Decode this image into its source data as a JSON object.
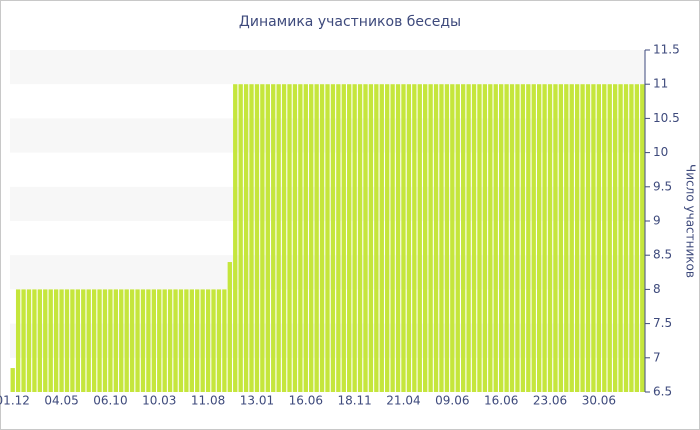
{
  "chart_data": {
    "type": "bar",
    "title": "Динамика участников беседы",
    "y_label": "Число участников",
    "categories": [
      "01.12",
      null,
      null,
      null,
      null,
      null,
      null,
      null,
      null,
      "04.05",
      null,
      null,
      null,
      null,
      null,
      null,
      null,
      null,
      "06.10",
      null,
      null,
      null,
      null,
      null,
      null,
      null,
      null,
      "10.03",
      null,
      null,
      null,
      null,
      null,
      null,
      null,
      null,
      "11.08",
      null,
      null,
      null,
      null,
      null,
      null,
      null,
      null,
      "13.01",
      null,
      null,
      null,
      null,
      null,
      null,
      null,
      null,
      "16.06",
      null,
      null,
      null,
      null,
      null,
      null,
      null,
      null,
      "18.11",
      null,
      null,
      null,
      null,
      null,
      null,
      null,
      null,
      "21.04",
      null,
      null,
      null,
      null,
      null,
      null,
      null,
      null,
      "09.06",
      null,
      null,
      null,
      null,
      null,
      null,
      null,
      null,
      "16.06",
      null,
      null,
      null,
      null,
      null,
      null,
      null,
      null,
      "23.06",
      null,
      null,
      null,
      null,
      null,
      null,
      null,
      null,
      "30.06",
      null,
      null,
      null,
      null,
      null,
      null,
      null,
      null
    ],
    "values": [
      6.85,
      8,
      8,
      8,
      8,
      8,
      8,
      8,
      8,
      8,
      8,
      8,
      8,
      8,
      8,
      8,
      8,
      8,
      8,
      8,
      8,
      8,
      8,
      8,
      8,
      8,
      8,
      8,
      8,
      8,
      8,
      8,
      8,
      8,
      8,
      8,
      8,
      8,
      8,
      8,
      8.4,
      11,
      11,
      11,
      11,
      11,
      11,
      11,
      11,
      11,
      11,
      11,
      11,
      11,
      11,
      11,
      11,
      11,
      11,
      11,
      11,
      11,
      11,
      11,
      11,
      11,
      11,
      11,
      11,
      11,
      11,
      11,
      11,
      11,
      11,
      11,
      11,
      11,
      11,
      11,
      11,
      11,
      11,
      11,
      11,
      11,
      11,
      11,
      11,
      11,
      11,
      11,
      11,
      11,
      11,
      11,
      11,
      11,
      11,
      11,
      11,
      11,
      11,
      11,
      11,
      11,
      11,
      11,
      11,
      11,
      11,
      11,
      11,
      11,
      11,
      11,
      11
    ],
    "color": "#c5e63c",
    "ylim": [
      6.5,
      11.5
    ],
    "yticks": [
      6.5,
      7,
      7.5,
      8,
      8.5,
      9,
      9.5,
      10,
      10.5,
      11,
      11.5
    ],
    "y_axis_side": "right",
    "grid": "bands"
  }
}
